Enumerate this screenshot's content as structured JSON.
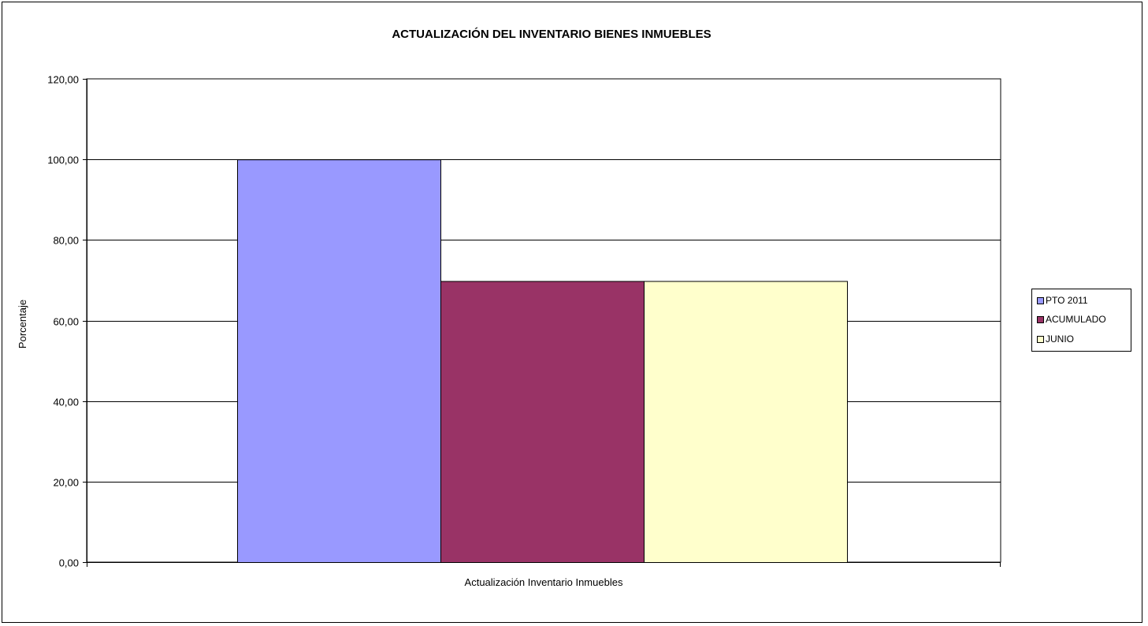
{
  "chart_data": {
    "type": "bar",
    "title": "ACTUALIZACIÓN  DEL INVENTARIO BIENES INMUEBLES",
    "xlabel": "Actualización Inventario Inmuebles",
    "ylabel": "Porcentaje",
    "categories": [
      "Actualización Inventario Inmuebles"
    ],
    "series": [
      {
        "name": "PTO  2011",
        "values": [
          100.0
        ],
        "color": "#9999ff"
      },
      {
        "name": "ACUMULADO",
        "values": [
          69.8
        ],
        "color": "#993366"
      },
      {
        "name": "JUNIO",
        "values": [
          69.8
        ],
        "color": "#ffffcc"
      }
    ],
    "ylim": [
      0,
      120
    ],
    "yticks": [
      "0,00",
      "20,00",
      "40,00",
      "60,00",
      "80,00",
      "100,00",
      "120,00"
    ],
    "grid": true,
    "legend_position": "right"
  }
}
